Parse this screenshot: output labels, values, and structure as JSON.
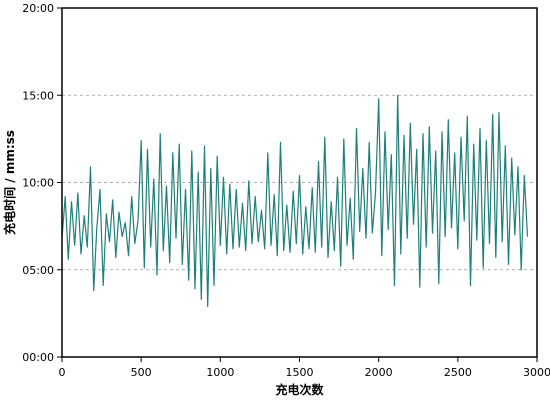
{
  "chart_data": {
    "type": "line",
    "title": "",
    "xlabel": "充电次数",
    "ylabel": "充电时间 / mm:ss",
    "xlim": [
      0,
      3000
    ],
    "ylim": [
      0,
      20
    ],
    "xticks": [
      0,
      500,
      1000,
      1500,
      2000,
      2500,
      3000
    ],
    "xtick_labels": [
      "0",
      "500",
      "1000",
      "1500",
      "2000",
      "2500",
      "3000"
    ],
    "yticks": [
      0,
      5,
      10,
      15,
      20
    ],
    "ytick_labels": [
      "00:00",
      "05:00",
      "10:00",
      "15:00",
      "20:00"
    ],
    "grid": "horizontal dashed at y ticks",
    "legend": "none",
    "line_color": "#1f7f7a",
    "series": [
      {
        "x": [
          0,
          20,
          40,
          60,
          80,
          100,
          120,
          140,
          160,
          180,
          200,
          220,
          240,
          260,
          280,
          300,
          320,
          340,
          360,
          380,
          400,
          420,
          440,
          460,
          480,
          500,
          520,
          540,
          560,
          580,
          600,
          620,
          640,
          660,
          680,
          700,
          720,
          740,
          760,
          780,
          800,
          820,
          840,
          860,
          880,
          900,
          920,
          940,
          960,
          980,
          1000,
          1020,
          1040,
          1060,
          1080,
          1100,
          1120,
          1140,
          1160,
          1180,
          1200,
          1220,
          1240,
          1260,
          1280,
          1300,
          1320,
          1340,
          1360,
          1380,
          1400,
          1420,
          1440,
          1460,
          1480,
          1500,
          1520,
          1540,
          1560,
          1580,
          1600,
          1620,
          1640,
          1660,
          1680,
          1700,
          1720,
          1740,
          1760,
          1780,
          1800,
          1820,
          1840,
          1860,
          1880,
          1900,
          1920,
          1940,
          1960,
          1980,
          2000,
          2020,
          2040,
          2060,
          2080,
          2100,
          2120,
          2140,
          2160,
          2180,
          2200,
          2220,
          2240,
          2260,
          2280,
          2300,
          2320,
          2340,
          2360,
          2380,
          2400,
          2420,
          2440,
          2460,
          2480,
          2500,
          2520,
          2540,
          2560,
          2580,
          2600,
          2620,
          2640,
          2660,
          2680,
          2700,
          2720,
          2740,
          2760,
          2780,
          2800,
          2820,
          2840,
          2860,
          2880,
          2900,
          2920,
          2940
        ],
        "y": [
          6.8,
          9.2,
          5.6,
          8.9,
          6.4,
          9.4,
          5.9,
          8.1,
          6.3,
          10.9,
          3.8,
          7.4,
          9.6,
          4.1,
          8.2,
          6.6,
          9.0,
          5.7,
          8.3,
          6.9,
          7.7,
          5.8,
          9.2,
          6.5,
          7.8,
          12.4,
          5.1,
          11.9,
          6.3,
          10.2,
          4.7,
          12.8,
          6.1,
          9.8,
          5.4,
          11.7,
          6.8,
          12.2,
          5.3,
          9.6,
          4.4,
          11.8,
          3.9,
          10.6,
          3.3,
          12.1,
          2.9,
          10.8,
          4.1,
          11.5,
          6.4,
          10.3,
          5.9,
          9.9,
          6.2,
          9.6,
          6.3,
          8.8,
          6.1,
          10.1,
          6.5,
          9.2,
          6.6,
          8.4,
          6.2,
          11.7,
          6.4,
          9.3,
          5.8,
          12.3,
          6.1,
          8.7,
          6.0,
          9.5,
          6.5,
          10.4,
          5.9,
          8.6,
          6.2,
          9.7,
          6.0,
          11.2,
          6.3,
          12.6,
          5.7,
          8.9,
          6.1,
          10.3,
          5.2,
          12.5,
          6.4,
          9.1,
          5.6,
          13.1,
          7.2,
          10.8,
          6.8,
          12.3,
          7.1,
          9.4,
          14.8,
          5.8,
          12.9,
          7.3,
          11.6,
          4.1,
          15.0,
          5.9,
          12.7,
          6.8,
          13.4,
          7.6,
          11.9,
          4.0,
          12.8,
          6.3,
          13.2,
          7.1,
          11.8,
          4.2,
          12.9,
          6.9,
          13.6,
          7.4,
          11.7,
          6.2,
          12.6,
          7.8,
          13.8,
          4.1,
          12.2,
          6.7,
          13.1,
          5.1,
          12.4,
          6.5,
          13.9,
          5.7,
          14.0,
          6.6,
          12.1,
          5.3,
          11.4,
          7.0,
          10.9,
          5.0,
          10.4,
          6.9
        ]
      }
    ]
  }
}
